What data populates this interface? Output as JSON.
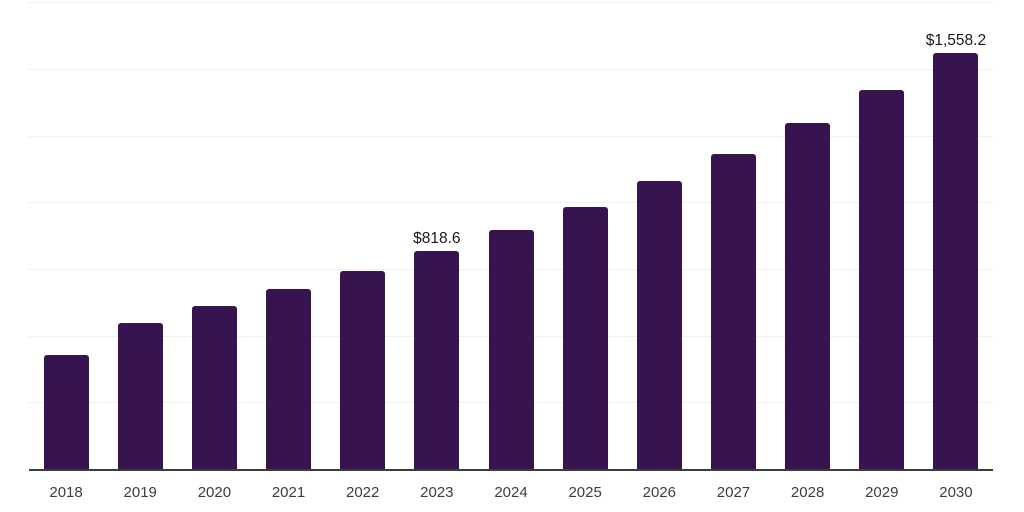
{
  "chart_data": {
    "type": "bar",
    "title": "",
    "xlabel": "",
    "ylabel": "",
    "categories": [
      "2018",
      "2019",
      "2020",
      "2021",
      "2022",
      "2023",
      "2024",
      "2025",
      "2026",
      "2027",
      "2028",
      "2029",
      "2030"
    ],
    "values": [
      428.0,
      547.0,
      611.0,
      674.0,
      744.0,
      818.6,
      897.4,
      983.8,
      1078.5,
      1182.4,
      1296.2,
      1421.1,
      1558.2
    ],
    "labeled_points": [
      {
        "category": "2023",
        "label": "$818.6"
      },
      {
        "category": "2030",
        "label": "$1,558.2"
      }
    ],
    "ylim": [
      0,
      1750
    ],
    "gridline_step": 250,
    "grid": "horizontal-only",
    "legend": "none",
    "colors": {
      "bar": "#371450",
      "gridline": "#f0f0f0",
      "axis_line": "#3c3c3c",
      "tick_label": "#3d3d3d",
      "data_label": "#1a1a1a",
      "background": "#ffffff"
    }
  }
}
